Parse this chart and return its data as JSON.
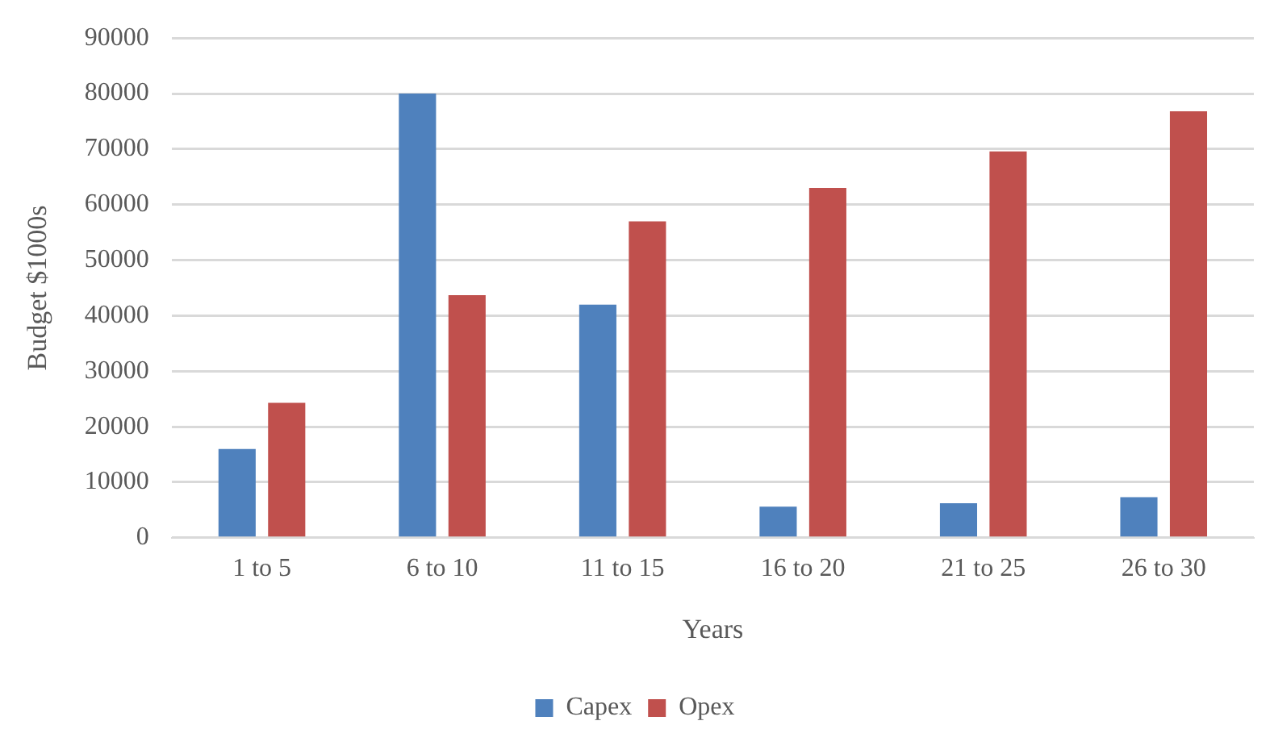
{
  "chart_data": {
    "type": "bar",
    "xlabel": "Years",
    "ylabel": "Budget $1000s",
    "categories": [
      "1 to 5",
      "6 to 10",
      "11 to 15",
      "16 to 20",
      "21 to 25",
      "26 to 30"
    ],
    "series": [
      {
        "name": "Capex",
        "color": "#4f81bd",
        "values": [
          16000,
          80000,
          42000,
          5600,
          6200,
          7300
        ]
      },
      {
        "name": "Opex",
        "color": "#c0504d",
        "values": [
          24300,
          43700,
          57000,
          63000,
          69600,
          76800
        ]
      }
    ],
    "ylim": [
      0,
      90000
    ],
    "yticks": [
      0,
      10000,
      20000,
      30000,
      40000,
      50000,
      60000,
      70000,
      80000,
      90000
    ],
    "grid": "y",
    "legend": "bottom"
  }
}
